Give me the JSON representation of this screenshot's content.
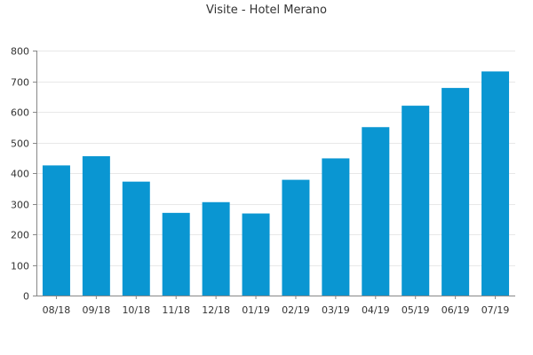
{
  "chart_data": {
    "type": "bar",
    "title": "Visite - Hotel Merano",
    "xlabel": "",
    "ylabel": "",
    "categories": [
      "08/18",
      "09/18",
      "10/18",
      "11/18",
      "12/18",
      "01/19",
      "02/19",
      "03/19",
      "04/19",
      "05/19",
      "06/19",
      "07/19"
    ],
    "values": [
      425,
      455,
      372,
      270,
      305,
      268,
      378,
      448,
      550,
      620,
      678,
      732
    ],
    "ylim": [
      0,
      800
    ],
    "yticks": [
      0,
      100,
      200,
      300,
      400,
      500,
      600,
      700,
      800
    ],
    "grid": true,
    "legend": "none",
    "colors": {
      "bar": "#0a96d2",
      "grid": "#e8e8e8",
      "axis": "#888888",
      "text": "#333333"
    }
  }
}
